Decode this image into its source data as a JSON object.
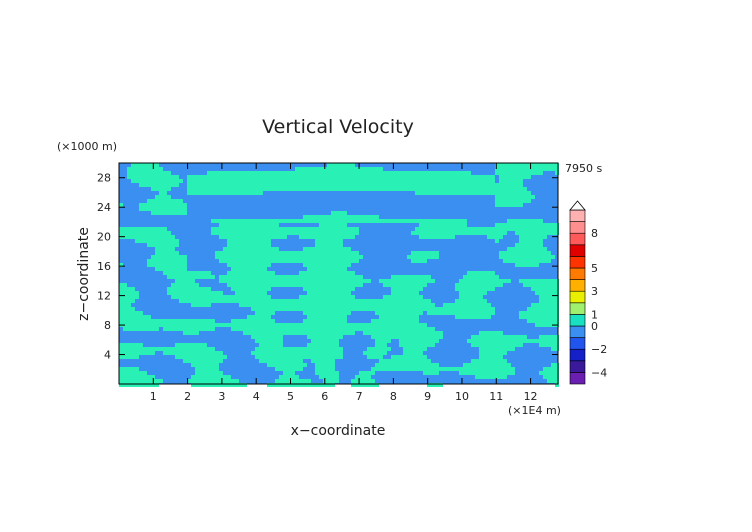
{
  "chart_data": {
    "type": "heatmap",
    "title": "Vertical Velocity",
    "xlabel": "x−coordinate",
    "ylabel": "z−coordinate",
    "x_unit": "(×1E4 m)",
    "y_unit": "(×1000 m)",
    "time_label": "7950 s",
    "xlim": [
      0,
      12.8
    ],
    "ylim": [
      0,
      30
    ],
    "x_ticks": [
      "1",
      "2",
      "3",
      "4",
      "5",
      "6",
      "7",
      "8",
      "9",
      "10",
      "11",
      "12"
    ],
    "y_ticks": [
      "4",
      "8",
      "12",
      "16",
      "20",
      "24",
      "28"
    ],
    "colorbar": {
      "levels": [
        -5,
        -4,
        -3,
        -2,
        -1,
        0,
        1,
        2,
        3,
        4,
        5,
        6,
        7,
        8,
        9,
        10
      ],
      "labels": [
        "8",
        "5",
        "3",
        "1",
        "0",
        "−2",
        "−4"
      ],
      "colors": [
        "#6a1fb0",
        "#3a1a9a",
        "#1520c8",
        "#2255ee",
        "#3a8ff0",
        "#19e0c0",
        "#a0f070",
        "#e8f000",
        "#ffb000",
        "#ff7a00",
        "#ff3300",
        "#e00000",
        "#ff5a5a",
        "#ff8f8f",
        "#ffb0b0"
      ]
    },
    "dominant_field_colors": {
      "positive": "#29f0b4",
      "negative": "#3a8ff0"
    },
    "grid": false,
    "legend": "right"
  }
}
